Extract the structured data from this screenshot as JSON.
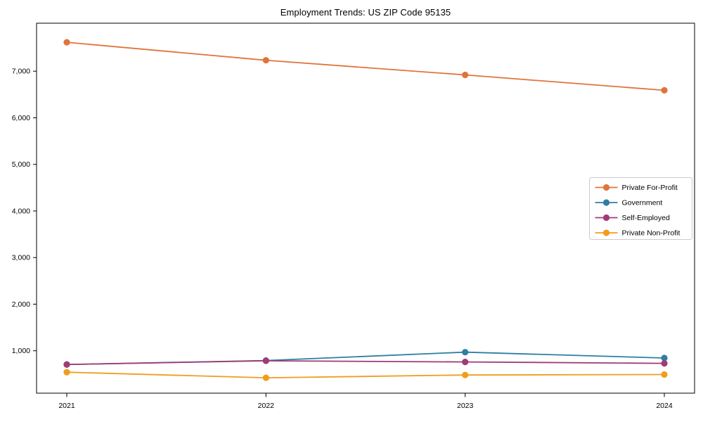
{
  "figure": {
    "background": "#ffffff",
    "axis_color": "#000000",
    "tick_label_color": "#000000"
  },
  "chart_data": {
    "type": "line",
    "title": "Employment Trends: US ZIP Code 95135",
    "categories": [
      "2021",
      "2022",
      "2023",
      "2024"
    ],
    "series": [
      {
        "name": "Private For-Profit",
        "slug": "private-for-profit",
        "color": "#E1743B",
        "values": [
          7620,
          7235,
          6920,
          6590
        ]
      },
      {
        "name": "Government",
        "slug": "government",
        "color": "#2E7FA0",
        "values": [
          705,
          790,
          970,
          845
        ]
      },
      {
        "name": "Self-Employed",
        "slug": "self-employed",
        "color": "#A03B76",
        "values": [
          705,
          785,
          760,
          730
        ]
      },
      {
        "name": "Private Non-Profit",
        "slug": "private-non-profit",
        "color": "#F09D1E",
        "values": [
          540,
          420,
          480,
          490
        ]
      }
    ],
    "xlabel": "",
    "ylabel": "",
    "ylim": [
      90,
      8030
    ],
    "yticks": [
      1000,
      2000,
      3000,
      4000,
      5000,
      6000,
      7000
    ],
    "ytick_labels": [
      "1,000",
      "2,000",
      "3,000",
      "4,000",
      "5,000",
      "6,000",
      "7,000"
    ],
    "grid": false,
    "marker": "circle",
    "legend": {
      "position": "middle-right",
      "background": "#ffffff",
      "border_color": "#cccccc"
    }
  }
}
